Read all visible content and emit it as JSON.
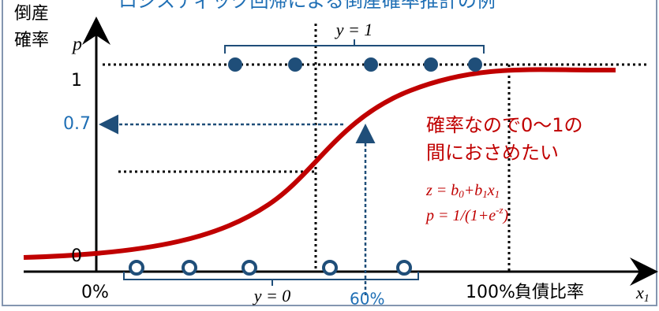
{
  "title": "ロジスティック回帰による倒産確率推計の例",
  "y_axis": {
    "label_line1": "倒産",
    "label_line2": "確率",
    "symbol": "p",
    "tick_1": "1",
    "tick_07": "0.7",
    "tick_0": "0"
  },
  "x_axis": {
    "tick_0": "0%",
    "tick_100": "100%",
    "label": "負債比率",
    "symbol": "x",
    "symbol_sub": "1",
    "marker_60": "60%"
  },
  "groups": {
    "top": "y = 1",
    "bottom": "y = 0"
  },
  "note": {
    "line1": "確率なので0〜1の",
    "line2": "間におさめたい"
  },
  "formula1": [
    "z = b",
    "0",
    "+b",
    "1",
    "x",
    "1"
  ],
  "formula2": [
    "p = 1/(1+",
    "e",
    "-z",
    ")"
  ]
}
